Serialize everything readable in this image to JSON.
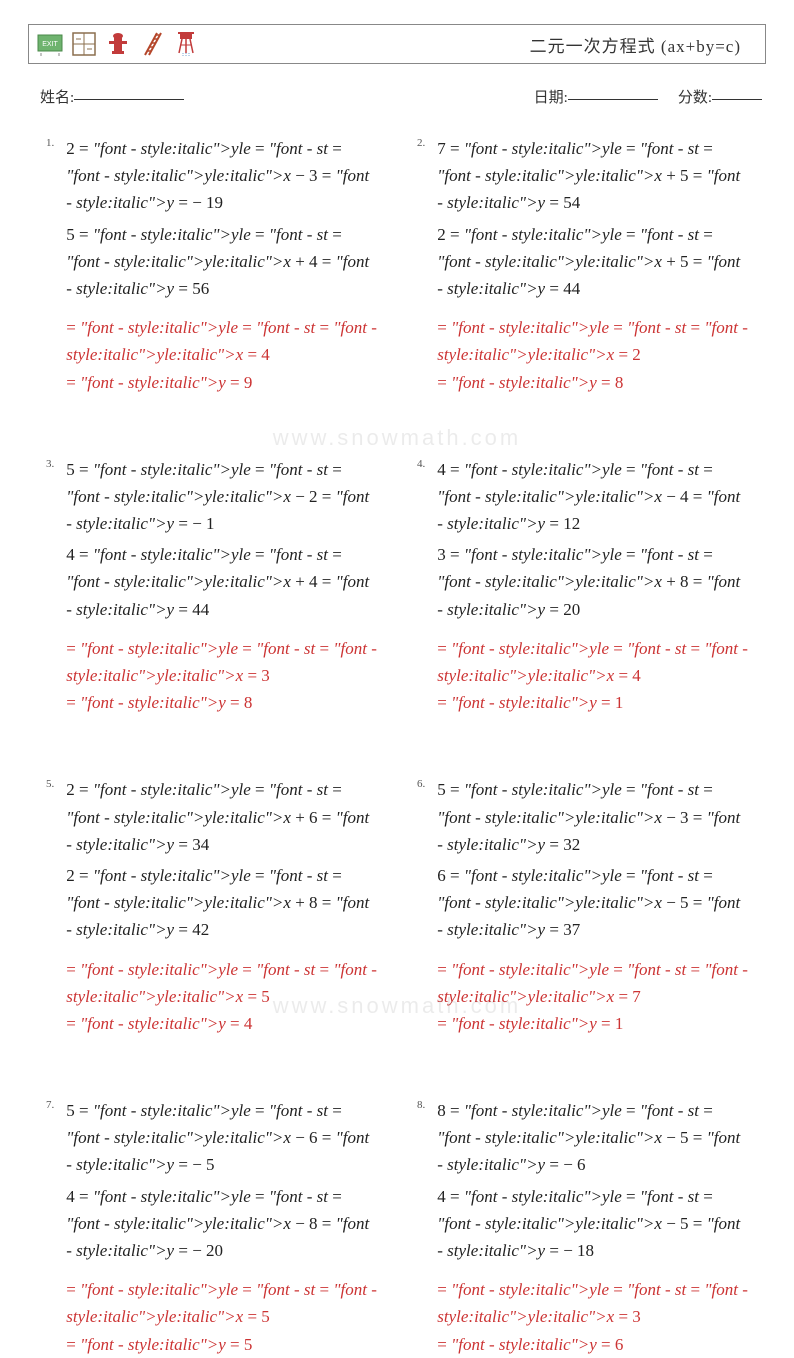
{
  "header": {
    "title": "二元一次方程式 (ax+by=c)",
    "icon_colors": {
      "exit_sign_bg": "#6fb36f",
      "barrier_frame": "#8b6f4e",
      "hydrant": "#c23b3b",
      "ladder": "#b5472b",
      "tower": "#c23b3b"
    }
  },
  "labels": {
    "name": "姓名:",
    "date": "日期:",
    "score": "分数:"
  },
  "watermark": "www.snowmath.com",
  "colors": {
    "equation_text": "#222222",
    "answer_text": "#cc3333",
    "number_text": "#555555",
    "border": "#888888",
    "background": "#ffffff"
  },
  "typography": {
    "title_fontsize": 17,
    "equation_fontsize": 17,
    "number_fontsize": 11,
    "info_fontsize": 15,
    "font_family": "Times New Roman / SimSun serif"
  },
  "problems": [
    {
      "num": "1.",
      "eq1": "2x − 3y = −19",
      "eq2": "5x + 4y = 56",
      "ans_x": "x = 4",
      "ans_y": "y = 9"
    },
    {
      "num": "2.",
      "eq1": "7x + 5y = 54",
      "eq2": "2x + 5y = 44",
      "ans_x": "x = 2",
      "ans_y": "y = 8"
    },
    {
      "num": "3.",
      "eq1": "5x − 2y = −1",
      "eq2": "4x + 4y = 44",
      "ans_x": "x = 3",
      "ans_y": "y = 8"
    },
    {
      "num": "4.",
      "eq1": "4x − 4y = 12",
      "eq2": "3x + 8y = 20",
      "ans_x": "x = 4",
      "ans_y": "y = 1"
    },
    {
      "num": "5.",
      "eq1": "2x + 6y = 34",
      "eq2": "2x + 8y = 42",
      "ans_x": "x = 5",
      "ans_y": "y = 4"
    },
    {
      "num": "6.",
      "eq1": "5x − 3y = 32",
      "eq2": "6x − 5y = 37",
      "ans_x": "x = 7",
      "ans_y": "y = 1"
    },
    {
      "num": "7.",
      "eq1": "5x − 6y = −5",
      "eq2": "4x − 8y = −20",
      "ans_x": "x = 5",
      "ans_y": "y = 5"
    },
    {
      "num": "8.",
      "eq1": "8x − 5y = −6",
      "eq2": "4x − 5y = −18",
      "ans_x": "x = 3",
      "ans_y": "y = 6"
    }
  ]
}
